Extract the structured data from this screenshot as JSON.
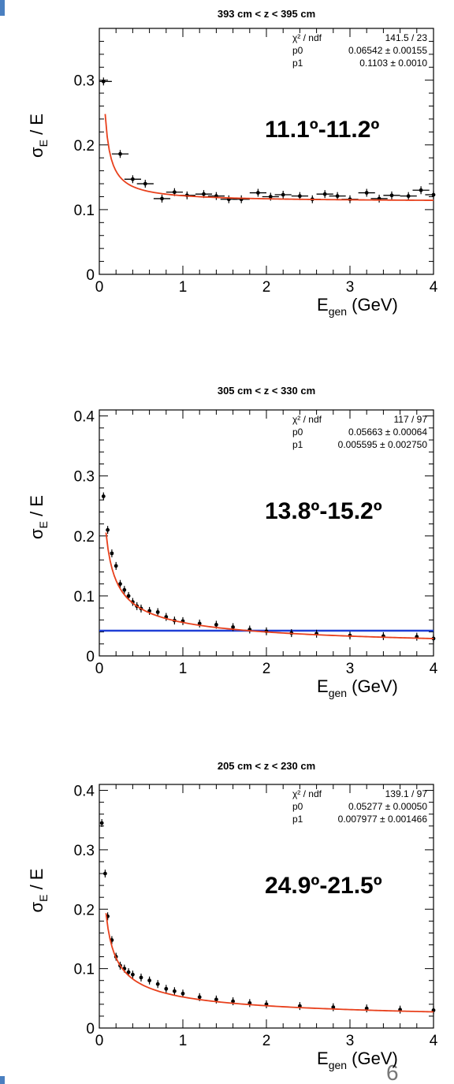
{
  "page_number": "6",
  "colors": {
    "fit": "#e8401c",
    "threshold": "#1f3fd6",
    "points": "#000000",
    "axes": "#000000"
  },
  "chart_data": [
    {
      "type": "scatter",
      "title": "393 cm < z < 395 cm",
      "annotation": "11.1º-11.2º",
      "xlabel": "E_gen (GeV)",
      "ylabel": "σ_E / E",
      "xlim": [
        0,
        4
      ],
      "ylim": [
        0,
        0.38
      ],
      "xticks": [
        0,
        1,
        2,
        3,
        4
      ],
      "yticks": [
        0,
        0.1,
        0.2,
        0.3
      ],
      "ytick_labels": [
        "0",
        "0.1",
        "0.2",
        "0.3"
      ],
      "stats": [
        {
          "label": "χ² / ndf",
          "value": "141.5 / 23"
        },
        {
          "label": "p0",
          "value": "0.06542 ± 0.00155"
        },
        {
          "label": "p1",
          "value": "0.1103 ± 0.0010"
        }
      ],
      "fit": {
        "p0": 0.06542,
        "p1": 0.1103,
        "p2": 0.07,
        "x_range": [
          0.07,
          4
        ]
      },
      "bin_halfwidth": 0.1,
      "x": [
        0.05,
        0.25,
        0.4,
        0.55,
        0.75,
        0.9,
        1.05,
        1.25,
        1.4,
        1.55,
        1.7,
        1.9,
        2.05,
        2.2,
        2.4,
        2.55,
        2.7,
        2.85,
        3.0,
        3.2,
        3.35,
        3.5,
        3.7,
        3.85,
        4.0
      ],
      "y": [
        0.298,
        0.186,
        0.147,
        0.14,
        0.117,
        0.127,
        0.122,
        0.124,
        0.121,
        0.116,
        0.116,
        0.126,
        0.12,
        0.123,
        0.121,
        0.116,
        0.124,
        0.121,
        0.116,
        0.126,
        0.117,
        0.122,
        0.121,
        0.13,
        0.123
      ]
    },
    {
      "type": "scatter",
      "title": "305 cm < z < 330 cm",
      "annotation": "13.8º-15.2º",
      "xlabel": "E_gen (GeV)",
      "ylabel": "σ_E / E",
      "xlim": [
        0,
        4
      ],
      "ylim": [
        0,
        0.41
      ],
      "xticks": [
        0,
        1,
        2,
        3,
        4
      ],
      "yticks": [
        0,
        0.1,
        0.2,
        0.3,
        0.4
      ],
      "ytick_labels": [
        "0",
        "0.1",
        "0.2",
        "0.3",
        "0.4"
      ],
      "stats": [
        {
          "label": "χ² / ndf",
          "value": "117 / 97"
        },
        {
          "label": "p0",
          "value": "0.05663 ± 0.00064"
        },
        {
          "label": "p1",
          "value": "0.005595 ± 0.002750"
        }
      ],
      "fit": {
        "p0": 0.05663,
        "p1": 0.005595,
        "p2": 0.0,
        "x_range": [
          0.08,
          4
        ]
      },
      "threshold_y": 0.042,
      "x": [
        0.05,
        0.1,
        0.15,
        0.2,
        0.25,
        0.3,
        0.35,
        0.4,
        0.45,
        0.5,
        0.6,
        0.7,
        0.8,
        0.9,
        1.0,
        1.2,
        1.4,
        1.6,
        1.8,
        2.0,
        2.3,
        2.6,
        3.0,
        3.4,
        3.8,
        4.0
      ],
      "y": [
        0.266,
        0.21,
        0.171,
        0.15,
        0.12,
        0.11,
        0.1,
        0.09,
        0.083,
        0.079,
        0.075,
        0.073,
        0.065,
        0.059,
        0.058,
        0.054,
        0.052,
        0.048,
        0.044,
        0.041,
        0.038,
        0.037,
        0.034,
        0.033,
        0.032,
        0.029
      ]
    },
    {
      "type": "scatter",
      "title": "205 cm < z < 230 cm",
      "annotation": "24.9º-21.5º",
      "xlabel": "E_gen (GeV)",
      "ylabel": "σ_E / E",
      "xlim": [
        0,
        4
      ],
      "ylim": [
        0,
        0.41
      ],
      "xticks": [
        0,
        1,
        2,
        3,
        4
      ],
      "yticks": [
        0,
        0.1,
        0.2,
        0.3,
        0.4
      ],
      "ytick_labels": [
        "0",
        "0.1",
        "0.2",
        "0.3",
        "0.4"
      ],
      "stats": [
        {
          "label": "χ² / ndf",
          "value": "139.1 / 97"
        },
        {
          "label": "p0",
          "value": "0.05277 ± 0.00050"
        },
        {
          "label": "p1",
          "value": "0.007977 ± 0.001466"
        }
      ],
      "fit": {
        "p0": 0.05277,
        "p1": 0.007977,
        "p2": 0.0,
        "x_range": [
          0.08,
          4
        ]
      },
      "x": [
        0.03,
        0.07,
        0.1,
        0.15,
        0.2,
        0.25,
        0.3,
        0.35,
        0.4,
        0.5,
        0.6,
        0.7,
        0.8,
        0.9,
        1.0,
        1.2,
        1.4,
        1.6,
        1.8,
        2.0,
        2.4,
        2.8,
        3.2,
        3.6,
        4.0
      ],
      "y": [
        0.345,
        0.26,
        0.188,
        0.148,
        0.12,
        0.105,
        0.1,
        0.094,
        0.09,
        0.085,
        0.08,
        0.074,
        0.066,
        0.062,
        0.058,
        0.052,
        0.048,
        0.045,
        0.042,
        0.04,
        0.037,
        0.035,
        0.033,
        0.031,
        0.03
      ]
    }
  ]
}
